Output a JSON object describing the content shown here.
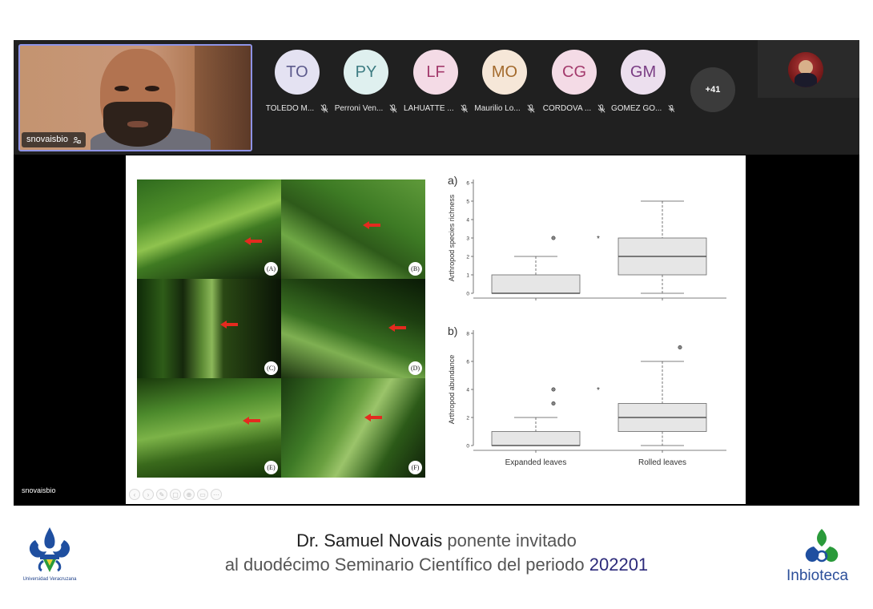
{
  "presenter": {
    "name": "snovaisbio"
  },
  "participants": [
    {
      "initials": "TO",
      "name": "TOLEDO M...",
      "bg": "#e4e2f2",
      "fg": "#5c5a8c"
    },
    {
      "initials": "PY",
      "name": "Perroni Ven...",
      "bg": "#dff0ef",
      "fg": "#3d7c82"
    },
    {
      "initials": "LF",
      "name": "LAHUATTE ...",
      "bg": "#f4dbe6",
      "fg": "#a33a6c"
    },
    {
      "initials": "MO",
      "name": "Maurilio Lo...",
      "bg": "#f6e7d8",
      "fg": "#a36a2c"
    },
    {
      "initials": "CG",
      "name": "CORDOVA ...",
      "bg": "#f4dbe6",
      "fg": "#a33a6c"
    },
    {
      "initials": "GM",
      "name": "GOMEZ GO...",
      "bg": "#ecdfee",
      "fg": "#7a3d84"
    }
  ],
  "more_participants": "+41",
  "share": {
    "label": "snovaisbio"
  },
  "slide": {
    "photo_panels": [
      "(A)",
      "(B)",
      "(C)",
      "(D)",
      "(E)",
      "(F)"
    ]
  },
  "chart_data": [
    {
      "type": "box",
      "panel": "a)",
      "ylabel": "Arthropod species richness",
      "categories": [
        "Expanded leaves",
        "Rolled leaves"
      ],
      "ylim": [
        0,
        6
      ],
      "yticks": [
        0,
        1,
        2,
        3,
        4,
        5,
        6
      ],
      "significance": "*",
      "boxes": [
        {
          "category": "Expanded leaves",
          "min": 0,
          "q1": 0,
          "median": 0,
          "q3": 1,
          "max": 2,
          "outliers": [
            3
          ]
        },
        {
          "category": "Rolled leaves",
          "min": 0,
          "q1": 1,
          "median": 2,
          "q3": 3,
          "max": 5,
          "outliers": []
        }
      ]
    },
    {
      "type": "box",
      "panel": "b)",
      "ylabel": "Arthropod abundance",
      "categories": [
        "Expanded leaves",
        "Rolled leaves"
      ],
      "ylim": [
        0,
        8
      ],
      "yticks": [
        0,
        2,
        4,
        6,
        8
      ],
      "significance": "*",
      "boxes": [
        {
          "category": "Expanded leaves",
          "min": 0,
          "q1": 0,
          "median": 0,
          "q3": 1,
          "max": 2,
          "outliers": [
            3,
            4
          ]
        },
        {
          "category": "Rolled leaves",
          "min": 0,
          "q1": 1,
          "median": 2,
          "q3": 3,
          "max": 6,
          "outliers": [
            7
          ]
        }
      ]
    }
  ],
  "caption": {
    "line1_name": "Dr. Samuel Novais",
    "line1_rest": "ponente invitado",
    "line2_text": "al duodécimo Seminario Científico del periodo",
    "line2_period": "202201"
  },
  "logos": {
    "left_label": "Universidad Veracruzana",
    "right_label": "Inbioteca"
  }
}
